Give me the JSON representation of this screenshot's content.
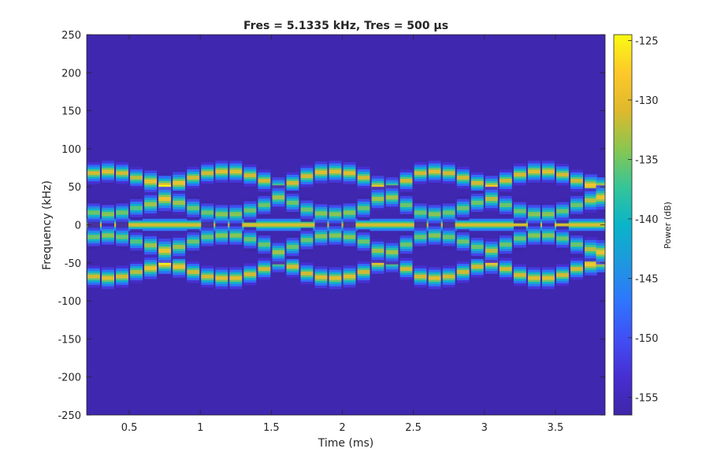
{
  "chart_data": {
    "type": "heatmap",
    "title": "Fres = 5.1335 kHz, Tres = 500 µs",
    "xlabel": "Time (ms)",
    "ylabel": "Frequency (kHz)",
    "xlim": [
      0.2,
      3.85
    ],
    "ylim": [
      -250,
      250
    ],
    "x_ticks": [
      0.5,
      1,
      1.5,
      2,
      2.5,
      3,
      3.5
    ],
    "x_tick_labels": [
      "0.5",
      "1",
      "1.5",
      "2",
      "2.5",
      "3",
      "3.5"
    ],
    "y_ticks": [
      -250,
      -200,
      -150,
      -100,
      -50,
      0,
      50,
      100,
      150,
      200,
      250
    ],
    "y_tick_labels": [
      "-250",
      "-200",
      "-150",
      "-100",
      "-50",
      "0",
      "50",
      "100",
      "150",
      "200",
      "250"
    ],
    "colorbar": {
      "label": "Power (dB)",
      "range": [
        -156.5,
        -124.5
      ],
      "ticks": [
        -155,
        -150,
        -145,
        -140,
        -135,
        -130,
        -125
      ],
      "tick_labels": [
        "-155",
        "-150",
        "-145",
        "-140",
        "-135",
        "-130",
        "-125"
      ],
      "colormap": "parula"
    },
    "background_power_db": -156,
    "segment_width_ms": 0.0875,
    "carrier": {
      "frequency_khz": 0,
      "power_db": -130.5
    },
    "sidebands": [
      {
        "t": 0.25,
        "f": 68,
        "p": -131
      },
      {
        "t": 0.35,
        "f": 70,
        "p": -130
      },
      {
        "t": 0.45,
        "f": 68,
        "p": -131
      },
      {
        "t": 0.55,
        "f": 62,
        "p": -132
      },
      {
        "t": 0.65,
        "f": 57,
        "p": -129
      },
      {
        "t": 0.75,
        "f": 50,
        "p": -125
      },
      {
        "t": 0.85,
        "f": 55,
        "p": -129
      },
      {
        "t": 0.95,
        "f": 62,
        "p": -131
      },
      {
        "t": 1.05,
        "f": 68,
        "p": -131
      },
      {
        "t": 1.15,
        "f": 70,
        "p": -130
      },
      {
        "t": 1.25,
        "f": 70,
        "p": -130
      },
      {
        "t": 1.35,
        "f": 65,
        "p": -131
      },
      {
        "t": 1.45,
        "f": 58,
        "p": -131
      },
      {
        "t": 1.55,
        "f": 48,
        "p": -129
      },
      {
        "t": 1.65,
        "f": 55,
        "p": -131
      },
      {
        "t": 1.75,
        "f": 64,
        "p": -131
      },
      {
        "t": 1.85,
        "f": 69,
        "p": -130
      },
      {
        "t": 1.95,
        "f": 70,
        "p": -130
      },
      {
        "t": 2.05,
        "f": 68,
        "p": -130
      },
      {
        "t": 2.15,
        "f": 62,
        "p": -131
      },
      {
        "t": 2.25,
        "f": 50,
        "p": -129
      },
      {
        "t": 2.35,
        "f": 48,
        "p": -129
      },
      {
        "t": 2.45,
        "f": 58,
        "p": -131
      },
      {
        "t": 2.55,
        "f": 68,
        "p": -131
      },
      {
        "t": 2.65,
        "f": 70,
        "p": -130
      },
      {
        "t": 2.75,
        "f": 68,
        "p": -131
      },
      {
        "t": 2.85,
        "f": 62,
        "p": -131
      },
      {
        "t": 2.95,
        "f": 55,
        "p": -131
      },
      {
        "t": 3.05,
        "f": 50,
        "p": -128
      },
      {
        "t": 3.15,
        "f": 58,
        "p": -131
      },
      {
        "t": 3.25,
        "f": 66,
        "p": -131
      },
      {
        "t": 3.35,
        "f": 70,
        "p": -130
      },
      {
        "t": 3.45,
        "f": 70,
        "p": -130
      },
      {
        "t": 3.55,
        "f": 66,
        "p": -131
      },
      {
        "t": 3.65,
        "f": 58,
        "p": -131
      },
      {
        "t": 3.75,
        "f": 52,
        "p": -128
      },
      {
        "t": 3.83,
        "f": 48,
        "p": -125
      }
    ]
  }
}
